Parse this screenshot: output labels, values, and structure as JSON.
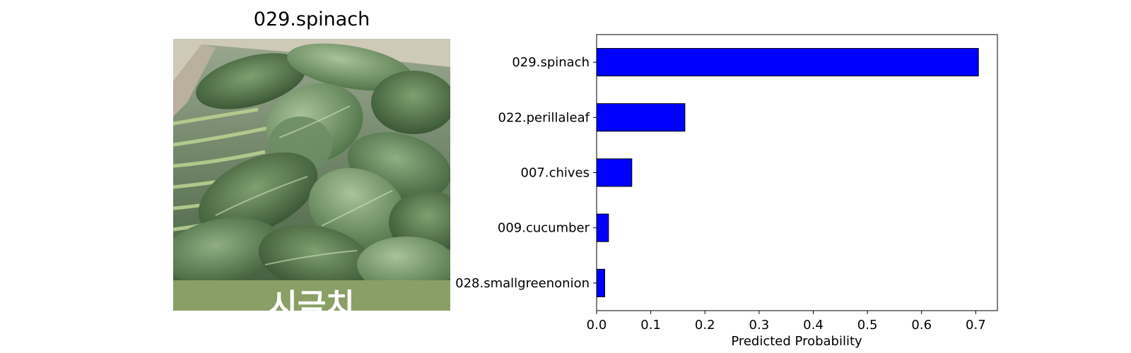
{
  "image_panel": {
    "title": "029.spinach",
    "photo_caption": "시금치"
  },
  "chart_data": {
    "type": "bar",
    "orientation": "horizontal",
    "categories": [
      "029.spinach",
      "022.perillaleaf",
      "007.chives",
      "009.cucumber",
      "028.smallgreenonion"
    ],
    "values": [
      0.705,
      0.163,
      0.065,
      0.022,
      0.015
    ],
    "xlabel": "Predicted Probability",
    "ylabel": "",
    "xlim": [
      0,
      0.74
    ],
    "xticks": [
      0.0,
      0.1,
      0.2,
      0.3,
      0.4,
      0.5,
      0.6,
      0.7
    ],
    "xtick_labels": [
      "0.0",
      "0.1",
      "0.2",
      "0.3",
      "0.4",
      "0.5",
      "0.6",
      "0.7"
    ],
    "grid": false,
    "colors": {
      "bar": "#0000ff",
      "edge": "#000000"
    }
  }
}
